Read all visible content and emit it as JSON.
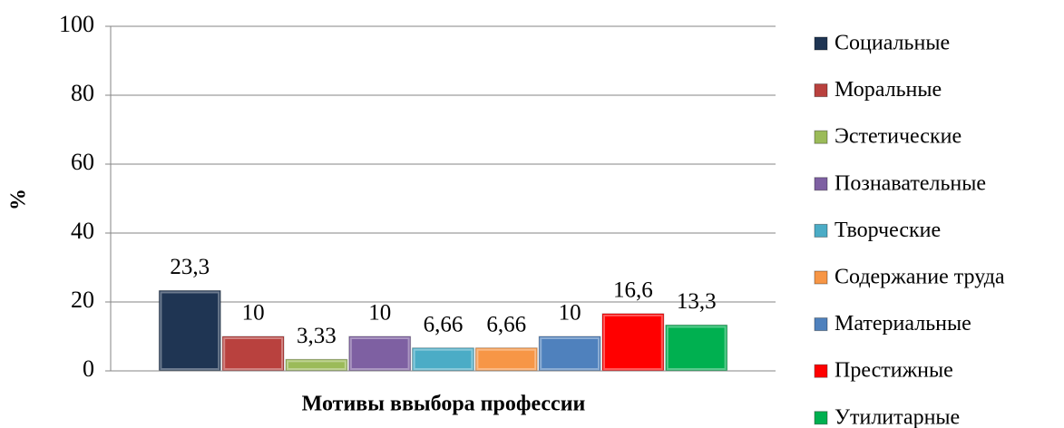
{
  "chart_data": {
    "type": "bar",
    "x_label": "Мотивы ввыбора профессии",
    "y_label": "%",
    "ylim": [
      0,
      100
    ],
    "yticks": [
      0,
      20,
      40,
      60,
      80,
      100
    ],
    "grid": true,
    "legend": "right",
    "series": [
      {
        "name": "Социальные",
        "color": "#1f3553",
        "values": [
          23.3
        ],
        "value_labels": [
          "23,3"
        ]
      },
      {
        "name": "Моральные",
        "color": "#b9413e",
        "values": [
          10
        ]
      },
      {
        "name": "Эстетические",
        "color": "#9bbb59",
        "values": [
          3.33
        ],
        "value_labels": [
          "3,33"
        ]
      },
      {
        "name": "Познавательные",
        "color": "#7e60a2",
        "values": [
          10
        ]
      },
      {
        "name": "Творческие",
        "color": "#4bacc6",
        "values": [
          6.66
        ],
        "value_labels": [
          "6,66"
        ]
      },
      {
        "name": "Содержание труда",
        "color": "#f79646",
        "values": [
          6.66
        ],
        "value_labels": [
          "6,66"
        ]
      },
      {
        "name": "Материальные",
        "color": "#4f81bd",
        "values": [
          10
        ]
      },
      {
        "name": "Престижные",
        "color": "#ff0000",
        "values": [
          16.6
        ],
        "value_labels": [
          "16,6"
        ]
      },
      {
        "name": "Утилитарные",
        "color": "#00b050",
        "values": [
          13.3
        ],
        "value_labels": [
          "13,3"
        ]
      }
    ]
  }
}
